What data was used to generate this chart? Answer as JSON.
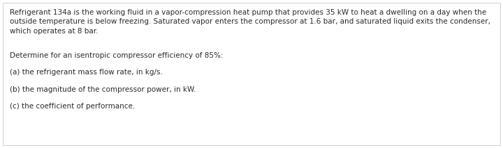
{
  "background_color": "#ffffff",
  "border_color": "#d0d0d0",
  "paragraph1_line1": "Refrigerant 134a is the working fluid in a vapor-compression heat pump that provides 35 kW to heat a dwelling on a day when the",
  "paragraph1_line2": "outside temperature is below freezing. Saturated vapor enters the compressor at 1.6 bar, and saturated liquid exits the condenser,",
  "paragraph1_line3": "which operates at 8 bar.",
  "paragraph2": "Determine for an isentropic compressor efficiency of 85%:",
  "item_a": "(a) the refrigerant mass flow rate, in kg/s.",
  "item_b": "(b) the magnitude of the compressor power, in kW.",
  "item_c": "(c) the coefficient of performance.",
  "font_size_body": 7.5,
  "text_color": "#2a2a2a",
  "fig_width": 7.2,
  "fig_height": 2.13,
  "dpi": 100
}
